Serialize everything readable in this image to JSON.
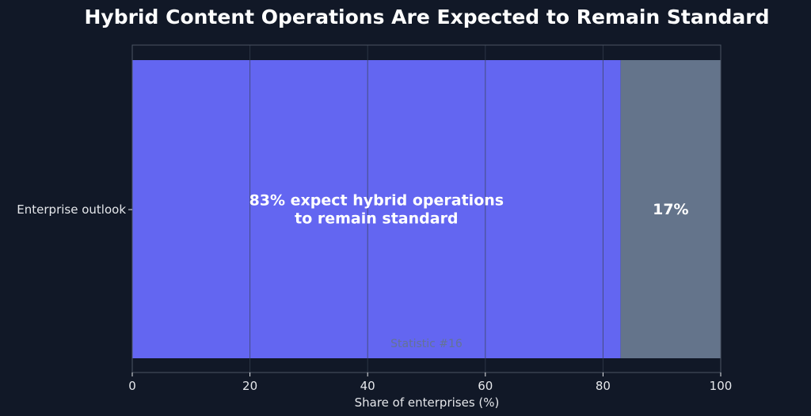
{
  "chart_data": {
    "type": "bar",
    "orientation": "horizontal",
    "stacked": true,
    "title": "Hybrid Content Operations Are Expected to Remain Standard",
    "xlabel": "Share of enterprises (%)",
    "ylabel": "",
    "categories": [
      "Enterprise outlook"
    ],
    "xlim": [
      0,
      100
    ],
    "xticks": [
      0,
      20,
      40,
      60,
      80,
      100
    ],
    "grid": true,
    "legend": "none",
    "series": [
      {
        "values": [
          83
        ],
        "color": "#6366f1",
        "label_lines": [
          "83% expect hybrid operations",
          "to remain standard"
        ]
      },
      {
        "values": [
          17
        ],
        "color": "#64748b",
        "label_lines": [
          "17%"
        ]
      }
    ],
    "watermark": "Statistic #16",
    "colors": {
      "background": "#111827",
      "text": "#ffffff",
      "tick_text": "#e5e7eb",
      "axis": "#4b5563",
      "grid": "#374151",
      "watermark": "#64748b"
    }
  }
}
